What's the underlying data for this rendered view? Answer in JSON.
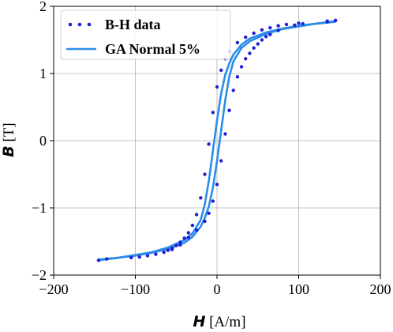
{
  "chart_data": {
    "type": "scatter",
    "title": "",
    "xlabel_sym": "H",
    "xlabel_unit": " [A/m]",
    "ylabel_sym": "B",
    "ylabel_unit": " [T]",
    "xlim": [
      -200,
      200
    ],
    "ylim": [
      -2,
      2
    ],
    "xticks": [
      -200,
      -100,
      0,
      100,
      200
    ],
    "yticks": [
      -2,
      -1,
      0,
      1,
      2
    ],
    "xtick_labels": [
      "−200",
      "−100",
      "0",
      "100",
      "200"
    ],
    "ytick_labels": [
      "−2",
      "−1",
      "0",
      "1",
      "2"
    ],
    "grid": true,
    "legend_position": "top-left",
    "series": [
      {
        "name": "B-H data",
        "type": "scatter",
        "color": "#1f1fd6",
        "x": [
          -145,
          -135,
          -105,
          -95,
          -85,
          -75,
          -65,
          -60,
          -55,
          -50,
          -45,
          -40,
          -35,
          -30,
          -25,
          -20,
          -15,
          -10,
          -5,
          0,
          5,
          10,
          15,
          25,
          35,
          45,
          55,
          65,
          75,
          85,
          100,
          135,
          145,
          -55,
          -45,
          -35,
          -25,
          -15,
          -10,
          -5,
          0,
          5,
          10,
          15,
          20,
          25,
          30,
          35,
          40,
          45,
          50,
          55,
          60,
          65,
          75,
          95,
          105,
          135,
          145
        ],
        "y": [
          -1.78,
          -1.76,
          -1.74,
          -1.73,
          -1.71,
          -1.69,
          -1.66,
          -1.63,
          -1.6,
          -1.56,
          -1.51,
          -1.45,
          -1.37,
          -1.26,
          -1.1,
          -0.85,
          -0.5,
          -0.05,
          0.42,
          0.8,
          1.05,
          1.22,
          1.33,
          1.46,
          1.54,
          1.6,
          1.65,
          1.68,
          1.71,
          1.73,
          1.75,
          1.78,
          1.79,
          -1.62,
          -1.55,
          -1.44,
          -1.33,
          -1.2,
          -1.08,
          -0.9,
          -0.65,
          -0.3,
          0.1,
          0.45,
          0.75,
          0.95,
          1.1,
          1.22,
          1.3,
          1.38,
          1.44,
          1.5,
          1.55,
          1.58,
          1.64,
          1.72,
          1.74,
          1.77,
          1.79
        ]
      },
      {
        "name": "GA Normal 5%",
        "type": "line",
        "color": "#2b8ce6",
        "branches": [
          {
            "x": [
              -145,
              -120,
              -100,
              -80,
              -60,
              -40,
              -30,
              -20,
              -15,
              -10,
              -5,
              0,
              5,
              10,
              15,
              20,
              30,
              40,
              60,
              80,
              100,
              120,
              145
            ],
            "y": [
              -1.78,
              -1.74,
              -1.7,
              -1.66,
              -1.59,
              -1.48,
              -1.38,
              -1.18,
              -0.95,
              -0.6,
              -0.15,
              0.3,
              0.7,
              0.98,
              1.15,
              1.28,
              1.43,
              1.52,
              1.61,
              1.67,
              1.71,
              1.74,
              1.77
            ]
          },
          {
            "x": [
              -145,
              -120,
              -100,
              -80,
              -60,
              -40,
              -30,
              -20,
              -15,
              -10,
              -5,
              0,
              5,
              10,
              15,
              20,
              30,
              40,
              60,
              80,
              100,
              120,
              145
            ],
            "y": [
              -1.77,
              -1.74,
              -1.71,
              -1.67,
              -1.61,
              -1.52,
              -1.43,
              -1.28,
              -1.15,
              -0.98,
              -0.7,
              -0.3,
              0.15,
              0.6,
              0.95,
              1.18,
              1.38,
              1.48,
              1.59,
              1.66,
              1.7,
              1.74,
              1.78
            ]
          }
        ]
      }
    ]
  }
}
